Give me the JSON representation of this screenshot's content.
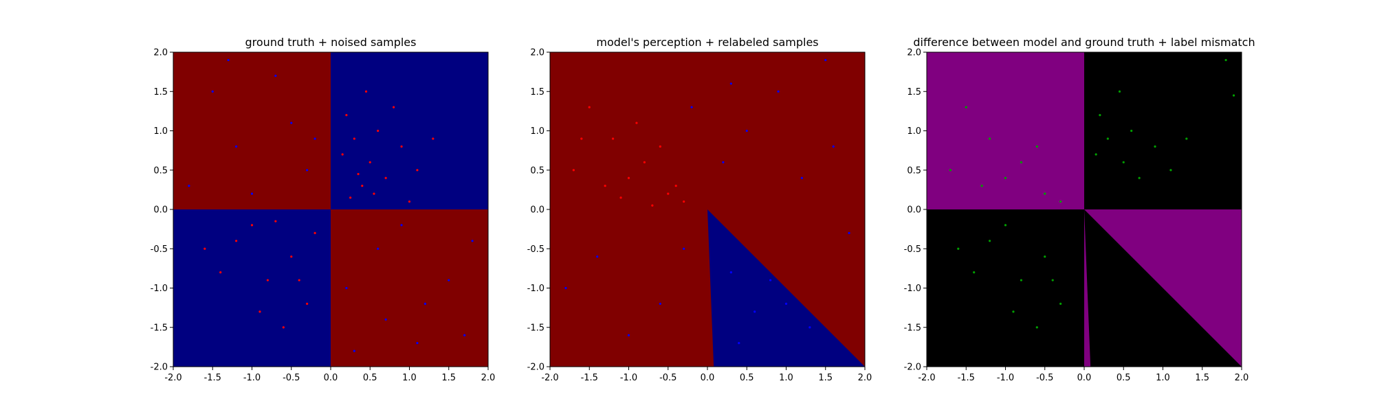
{
  "chart_data": [
    {
      "type": "scatter",
      "title": "ground truth + noised samples",
      "xlim": [
        -2.0,
        2.0
      ],
      "ylim": [
        -2.0,
        2.0
      ],
      "x_ticks": [
        "-2.0",
        "-1.5",
        "-1.0",
        "-0.5",
        "0.0",
        "0.5",
        "1.0",
        "1.5",
        "2.0"
      ],
      "y_ticks": [
        "-2.0",
        "-1.5",
        "-1.0",
        "-0.5",
        "0.0",
        "0.5",
        "1.0",
        "1.5",
        "2.0"
      ],
      "grid": false,
      "background_regions": [
        {
          "polygon": [
            [
              -2,
              0
            ],
            [
              0,
              0
            ],
            [
              0,
              2
            ],
            [
              -2,
              2
            ]
          ],
          "color": "#800000"
        },
        {
          "polygon": [
            [
              0,
              0
            ],
            [
              2,
              0
            ],
            [
              2,
              2
            ],
            [
              0,
              2
            ]
          ],
          "color": "#000080"
        },
        {
          "polygon": [
            [
              -2,
              -2
            ],
            [
              0,
              -2
            ],
            [
              0,
              0
            ],
            [
              -2,
              0
            ]
          ],
          "color": "#000080"
        },
        {
          "polygon": [
            [
              0,
              -2
            ],
            [
              2,
              -2
            ],
            [
              2,
              0
            ],
            [
              0,
              0
            ]
          ],
          "color": "#800000"
        }
      ],
      "series": [
        {
          "color": "#ff0000",
          "values": [
            [
              0.3,
              0.9
            ],
            [
              0.5,
              0.6
            ],
            [
              0.2,
              1.2
            ],
            [
              0.7,
              0.4
            ],
            [
              0.4,
              0.3
            ],
            [
              0.6,
              1.0
            ],
            [
              0.9,
              0.8
            ],
            [
              0.25,
              0.15
            ],
            [
              0.8,
              1.3
            ],
            [
              1.1,
              0.5
            ],
            [
              0.35,
              0.45
            ],
            [
              0.55,
              0.2
            ],
            [
              1.3,
              0.9
            ],
            [
              0.15,
              0.7
            ],
            [
              0.45,
              1.5
            ],
            [
              1.0,
              0.1
            ],
            [
              -0.5,
              -0.6
            ],
            [
              -0.8,
              -0.9
            ],
            [
              -1.2,
              -0.4
            ],
            [
              -0.3,
              -1.2
            ],
            [
              -0.6,
              -1.5
            ],
            [
              -1.0,
              -0.2
            ],
            [
              -0.2,
              -0.3
            ],
            [
              -1.4,
              -0.8
            ],
            [
              -0.4,
              -0.9
            ],
            [
              -0.9,
              -1.3
            ],
            [
              -1.6,
              -0.5
            ],
            [
              -0.7,
              -0.15
            ]
          ]
        },
        {
          "color": "#0000ff",
          "values": [
            [
              -1.5,
              1.5
            ],
            [
              -1.2,
              0.8
            ],
            [
              -0.7,
              1.7
            ],
            [
              -0.3,
              0.5
            ],
            [
              -1.8,
              0.3
            ],
            [
              -0.5,
              1.1
            ],
            [
              -1.0,
              0.2
            ],
            [
              1.2,
              -1.2
            ],
            [
              0.6,
              -0.5
            ],
            [
              1.7,
              -1.6
            ],
            [
              0.3,
              -1.8
            ],
            [
              0.9,
              -0.2
            ],
            [
              1.5,
              -0.9
            ],
            [
              0.2,
              -1.0
            ],
            [
              1.1,
              -1.7
            ],
            [
              0.7,
              -1.4
            ],
            [
              -0.2,
              0.9
            ],
            [
              -1.3,
              1.9
            ],
            [
              1.8,
              -0.4
            ]
          ]
        }
      ]
    },
    {
      "type": "scatter",
      "title": "model's perception + relabeled samples",
      "xlim": [
        -2.0,
        2.0
      ],
      "ylim": [
        -2.0,
        2.0
      ],
      "x_ticks": [
        "-2.0",
        "-1.5",
        "-1.0",
        "-0.5",
        "0.0",
        "0.5",
        "1.0",
        "1.5",
        "2.0"
      ],
      "y_ticks": [
        "-2.0",
        "-1.5",
        "-1.0",
        "-0.5",
        "0.0",
        "0.5",
        "1.0",
        "1.5",
        "2.0"
      ],
      "grid": false,
      "background_regions": [
        {
          "polygon": [
            [
              -2,
              -2
            ],
            [
              2,
              -2
            ],
            [
              2,
              2
            ],
            [
              -2,
              2
            ]
          ],
          "color": "#800000"
        },
        {
          "polygon": [
            [
              0,
              0
            ],
            [
              2,
              -2
            ],
            [
              0.08,
              -2
            ]
          ],
          "color": "#000080"
        }
      ],
      "series": [
        {
          "color": "#ff0000",
          "values": [
            [
              -1.5,
              1.3
            ],
            [
              -1.2,
              0.9
            ],
            [
              -0.8,
              0.6
            ],
            [
              -0.5,
              0.2
            ],
            [
              -1.0,
              0.4
            ],
            [
              -0.3,
              0.1
            ],
            [
              -1.7,
              0.5
            ],
            [
              -0.6,
              0.8
            ],
            [
              -1.3,
              0.3
            ],
            [
              -0.9,
              1.1
            ],
            [
              -0.4,
              0.3
            ],
            [
              -1.1,
              0.15
            ],
            [
              -0.7,
              0.05
            ],
            [
              -1.6,
              0.9
            ]
          ]
        },
        {
          "color": "#0000ff",
          "values": [
            [
              0.5,
              1.0
            ],
            [
              1.2,
              0.4
            ],
            [
              0.3,
              1.6
            ],
            [
              -1.4,
              -0.6
            ],
            [
              -0.6,
              -1.2
            ],
            [
              0.8,
              -0.9
            ],
            [
              1.3,
              -1.5
            ],
            [
              0.4,
              -1.7
            ],
            [
              -0.3,
              -0.5
            ],
            [
              1.6,
              0.8
            ],
            [
              0.9,
              1.5
            ],
            [
              -1.0,
              -1.6
            ],
            [
              0.2,
              0.6
            ],
            [
              1.8,
              -0.3
            ],
            [
              0.6,
              -1.3
            ],
            [
              1.0,
              -1.2
            ],
            [
              0.3,
              -0.8
            ],
            [
              -0.2,
              1.3
            ],
            [
              1.5,
              1.9
            ],
            [
              -1.8,
              -1.0
            ]
          ]
        }
      ]
    },
    {
      "type": "scatter",
      "title": "difference between model and ground truth + label mismatch",
      "xlim": [
        -2.0,
        2.0
      ],
      "ylim": [
        -2.0,
        2.0
      ],
      "x_ticks": [
        "-2.0",
        "-1.5",
        "-1.0",
        "-0.5",
        "0.0",
        "0.5",
        "1.0",
        "1.5",
        "2.0"
      ],
      "y_ticks": [
        "-2.0",
        "-1.5",
        "-1.0",
        "-0.5",
        "0.0",
        "0.5",
        "1.0",
        "1.5",
        "2.0"
      ],
      "grid": false,
      "background_regions": [
        {
          "polygon": [
            [
              -2,
              -2
            ],
            [
              2,
              -2
            ],
            [
              2,
              2
            ],
            [
              -2,
              2
            ]
          ],
          "color": "#000000"
        },
        {
          "polygon": [
            [
              -2,
              0
            ],
            [
              0,
              0
            ],
            [
              0,
              2
            ],
            [
              -2,
              2
            ]
          ],
          "color": "#800080"
        },
        {
          "polygon": [
            [
              0,
              0
            ],
            [
              2,
              0
            ],
            [
              2,
              -2
            ]
          ],
          "color": "#800080"
        },
        {
          "polygon": [
            [
              0,
              0
            ],
            [
              0.08,
              -2
            ],
            [
              0,
              -2
            ]
          ],
          "color": "#800080"
        }
      ],
      "series": [
        {
          "color": "#00a000",
          "values": [
            [
              -1.5,
              1.3
            ],
            [
              -1.2,
              0.9
            ],
            [
              -0.8,
              0.6
            ],
            [
              -0.5,
              0.2
            ],
            [
              -1.0,
              0.4
            ],
            [
              -0.3,
              0.1
            ],
            [
              -1.7,
              0.5
            ],
            [
              -0.6,
              0.8
            ],
            [
              -1.3,
              0.3
            ],
            [
              0.3,
              0.9
            ],
            [
              0.5,
              0.6
            ],
            [
              0.2,
              1.2
            ],
            [
              0.7,
              0.4
            ],
            [
              0.6,
              1.0
            ],
            [
              0.9,
              0.8
            ],
            [
              1.1,
              0.5
            ],
            [
              1.3,
              0.9
            ],
            [
              0.15,
              0.7
            ],
            [
              0.45,
              1.5
            ],
            [
              -0.5,
              -0.6
            ],
            [
              -0.8,
              -0.9
            ],
            [
              -1.2,
              -0.4
            ],
            [
              -0.3,
              -1.2
            ],
            [
              -0.6,
              -1.5
            ],
            [
              -1.0,
              -0.2
            ],
            [
              -1.4,
              -0.8
            ],
            [
              -0.4,
              -0.9
            ],
            [
              -0.9,
              -1.3
            ],
            [
              -1.6,
              -0.5
            ],
            [
              1.8,
              1.9
            ],
            [
              1.9,
              1.45
            ]
          ]
        }
      ]
    }
  ]
}
